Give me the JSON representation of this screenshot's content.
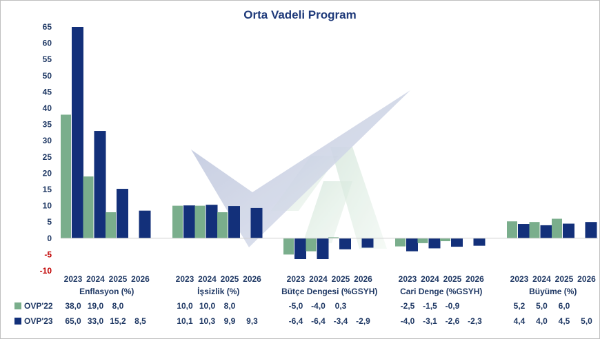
{
  "chart_data": {
    "type": "bar",
    "title": "Orta Vadeli Program",
    "ylim": [
      -10,
      65
    ],
    "yticks": [
      65,
      60,
      55,
      50,
      45,
      40,
      35,
      30,
      25,
      20,
      15,
      10,
      5,
      0,
      -5,
      -10
    ],
    "negative_tick_color": "#c00000",
    "years": [
      "2023",
      "2024",
      "2025",
      "2026"
    ],
    "groups": [
      {
        "label": "Enflasyon (%)",
        "ovp22": [
          38.0,
          19.0,
          8.0,
          null
        ],
        "ovp23": [
          65.0,
          33.0,
          15.2,
          8.5
        ],
        "ovp22_text": [
          "38,0",
          "19,0",
          "8,0",
          ""
        ],
        "ovp23_text": [
          "65,0",
          "33,0",
          "15,2",
          "8,5"
        ]
      },
      {
        "label": "İşsizlik (%)",
        "ovp22": [
          10.0,
          10.0,
          8.0,
          null
        ],
        "ovp23": [
          10.1,
          10.3,
          9.9,
          9.3
        ],
        "ovp22_text": [
          "10,0",
          "10,0",
          "8,0",
          ""
        ],
        "ovp23_text": [
          "10,1",
          "10,3",
          "9,9",
          "9,3"
        ]
      },
      {
        "label": "Bütçe Dengesi (%GSYH)",
        "ovp22": [
          -5.0,
          -4.0,
          0.3,
          null
        ],
        "ovp23": [
          -6.4,
          -6.4,
          -3.4,
          -2.9
        ],
        "ovp22_text": [
          "-5,0",
          "-4,0",
          "0,3",
          ""
        ],
        "ovp23_text": [
          "-6,4",
          "-6,4",
          "-3,4",
          "-2,9"
        ]
      },
      {
        "label": "Cari Denge (%GSYH)",
        "ovp22": [
          -2.5,
          -1.5,
          -0.9,
          null
        ],
        "ovp23": [
          -4.0,
          -3.1,
          -2.6,
          -2.3
        ],
        "ovp22_text": [
          "-2,5",
          "-1,5",
          "-0,9",
          ""
        ],
        "ovp23_text": [
          "-4,0",
          "-3,1",
          "-2,6",
          "-2,3"
        ]
      },
      {
        "label": "Büyüme (%)",
        "ovp22": [
          5.2,
          5.0,
          6.0,
          null
        ],
        "ovp23": [
          4.4,
          4.0,
          4.5,
          5.0
        ],
        "ovp22_text": [
          "5,2",
          "5,0",
          "6,0",
          ""
        ],
        "ovp23_text": [
          "4,4",
          "4,0",
          "4,5",
          "5,0"
        ]
      }
    ],
    "series": [
      {
        "name": "OVP'22",
        "color": "#7aae8c"
      },
      {
        "name": "OVP'23",
        "color": "#13307a"
      }
    ],
    "title_color": "#1f3a7a",
    "text_color": "#1f3864"
  }
}
